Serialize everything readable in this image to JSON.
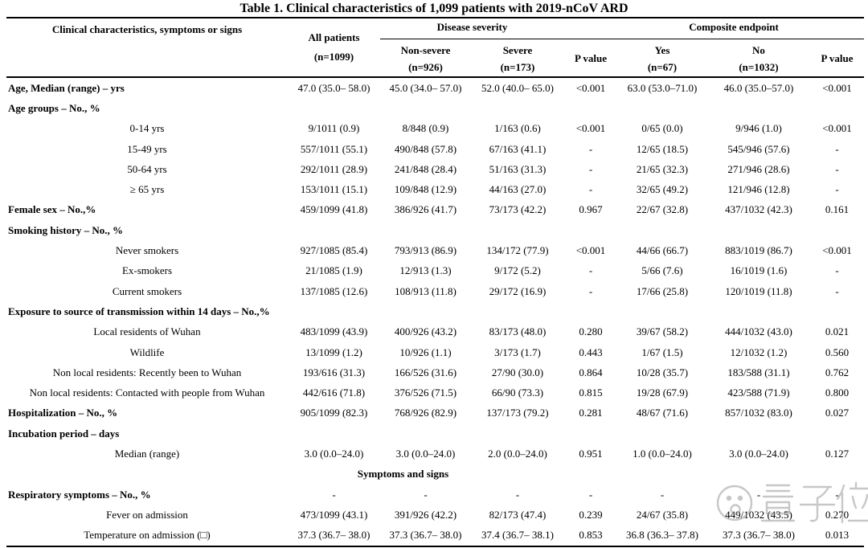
{
  "title": "Table 1. Clinical characteristics of 1,099 patients with 2019-nCoV ARD",
  "columns": {
    "label": "Clinical characteristics, symptoms or signs",
    "all_patients_line1": "All patients",
    "all_patients_line2": "(n=1099)",
    "group1": "Disease severity",
    "group2": "Composite endpoint",
    "non_severe_1": "Non-severe",
    "non_severe_2": "(n=926)",
    "severe_1": "Severe",
    "severe_2": "(n=173)",
    "p_value_1": "P value",
    "yes_1": "Yes",
    "yes_2": "(n=67)",
    "no_1": "No",
    "no_2": "(n=1032)",
    "p_value_2": "P value"
  },
  "rows": [
    {
      "type": "cat",
      "label": "Age, Median (range) – yrs",
      "values": [
        "47.0 (35.0– 58.0)",
        "45.0 (34.0– 57.0)",
        "52.0 (40.0– 65.0)",
        "<0.001",
        "63.0 (53.0–71.0)",
        "46.0 (35.0–57.0)",
        "<0.001"
      ]
    },
    {
      "type": "cat",
      "label": "Age groups – No., %",
      "values": [
        "",
        "",
        "",
        "",
        "",
        "",
        ""
      ]
    },
    {
      "type": "sub",
      "label": "0-14 yrs",
      "values": [
        "9/1011 (0.9)",
        "8/848 (0.9)",
        "1/163 (0.6)",
        "<0.001",
        "0/65 (0.0)",
        "9/946 (1.0)",
        "<0.001"
      ]
    },
    {
      "type": "sub",
      "label": "15-49 yrs",
      "values": [
        "557/1011 (55.1)",
        "490/848 (57.8)",
        "67/163 (41.1)",
        "-",
        "12/65 (18.5)",
        "545/946 (57.6)",
        "-"
      ]
    },
    {
      "type": "sub",
      "label": "50-64 yrs",
      "values": [
        "292/1011 (28.9)",
        "241/848 (28.4)",
        "51/163 (31.3)",
        "-",
        "21/65 (32.3)",
        "271/946 (28.6)",
        "-"
      ]
    },
    {
      "type": "sub",
      "label": "≥ 65 yrs",
      "values": [
        "153/1011 (15.1)",
        "109/848 (12.9)",
        "44/163 (27.0)",
        "-",
        "32/65 (49.2)",
        "121/946 (12.8)",
        "-"
      ]
    },
    {
      "type": "cat",
      "label": "Female sex – No.,%",
      "values": [
        "459/1099 (41.8)",
        "386/926 (41.7)",
        "73/173 (42.2)",
        "0.967",
        "22/67 (32.8)",
        "437/1032 (42.3)",
        "0.161"
      ]
    },
    {
      "type": "cat",
      "label": "Smoking history – No., %",
      "values": [
        "",
        "",
        "",
        "",
        "",
        "",
        ""
      ]
    },
    {
      "type": "sub",
      "label": "Never smokers",
      "values": [
        "927/1085 (85.4)",
        "793/913 (86.9)",
        "134/172 (77.9)",
        "<0.001",
        "44/66 (66.7)",
        "883/1019 (86.7)",
        "<0.001"
      ]
    },
    {
      "type": "sub",
      "label": "Ex-smokers",
      "values": [
        "21/1085 (1.9)",
        "12/913 (1.3)",
        "9/172 (5.2)",
        "-",
        "5/66 (7.6)",
        "16/1019 (1.6)",
        "-"
      ]
    },
    {
      "type": "sub",
      "label": "Current smokers",
      "values": [
        "137/1085 (12.6)",
        "108/913 (11.8)",
        "29/172 (16.9)",
        "-",
        "17/66 (25.8)",
        "120/1019 (11.8)",
        "-"
      ]
    },
    {
      "type": "cat",
      "label": "Exposure to source of transmission within 14 days – No.,%",
      "values": [
        "",
        "",
        "",
        "",
        "",
        "",
        ""
      ]
    },
    {
      "type": "sub",
      "label": "Local residents of Wuhan",
      "values": [
        "483/1099 (43.9)",
        "400/926 (43.2)",
        "83/173 (48.0)",
        "0.280",
        "39/67 (58.2)",
        "444/1032 (43.0)",
        "0.021"
      ]
    },
    {
      "type": "sub",
      "label": "Wildlife",
      "values": [
        "13/1099 (1.2)",
        "10/926 (1.1)",
        "3/173 (1.7)",
        "0.443",
        "1/67 (1.5)",
        "12/1032 (1.2)",
        "0.560"
      ]
    },
    {
      "type": "sub",
      "label": "Non local residents: Recently been to Wuhan",
      "values": [
        "193/616 (31.3)",
        "166/526 (31.6)",
        "27/90 (30.0)",
        "0.864",
        "10/28 (35.7)",
        "183/588 (31.1)",
        "0.762"
      ]
    },
    {
      "type": "sub",
      "label": "Non local residents: Contacted with people from Wuhan",
      "values": [
        "442/616 (71.8)",
        "376/526 (71.5)",
        "66/90 (73.3)",
        "0.815",
        "19/28 (67.9)",
        "423/588 (71.9)",
        "0.800"
      ]
    },
    {
      "type": "cat",
      "label": "Hospitalization – No., %",
      "values": [
        "905/1099 (82.3)",
        "768/926 (82.9)",
        "137/173 (79.2)",
        "0.281",
        "48/67 (71.6)",
        "857/1032 (83.0)",
        "0.027"
      ]
    },
    {
      "type": "cat",
      "label": "Incubation period – days",
      "values": [
        "",
        "",
        "",
        "",
        "",
        "",
        ""
      ]
    },
    {
      "type": "sub",
      "label": "Median (range)",
      "values": [
        "3.0 (0.0–24.0)",
        "3.0 (0.0–24.0)",
        "2.0 (0.0–24.0)",
        "0.951",
        "1.0 (0.0–24.0)",
        "3.0 (0.0–24.0)",
        "0.127"
      ]
    },
    {
      "type": "divider",
      "label": "Symptoms and signs"
    },
    {
      "type": "cat",
      "label": "Respiratory symptoms – No., %",
      "values": [
        "-",
        "-",
        "-",
        "-",
        "-",
        "-",
        "-"
      ]
    },
    {
      "type": "sub",
      "label": "Fever on admission",
      "values": [
        "473/1099 (43.1)",
        "391/926 (42.2)",
        "82/173 (47.4)",
        "0.239",
        "24/67 (35.8)",
        "449/1032 (43.5)",
        "0.270"
      ]
    },
    {
      "type": "sub",
      "label": "Temperature on admission (□)",
      "values": [
        "37.3 (36.7– 38.0)",
        "37.3 (36.7– 38.0)",
        "37.4 (36.7– 38.1)",
        "0.853",
        "36.8 (36.3– 37.8)",
        "37.3 (36.7– 38.0)",
        "0.013"
      ]
    }
  ],
  "watermark": {
    "text": "量子位",
    "color": "#9a9a9a"
  }
}
